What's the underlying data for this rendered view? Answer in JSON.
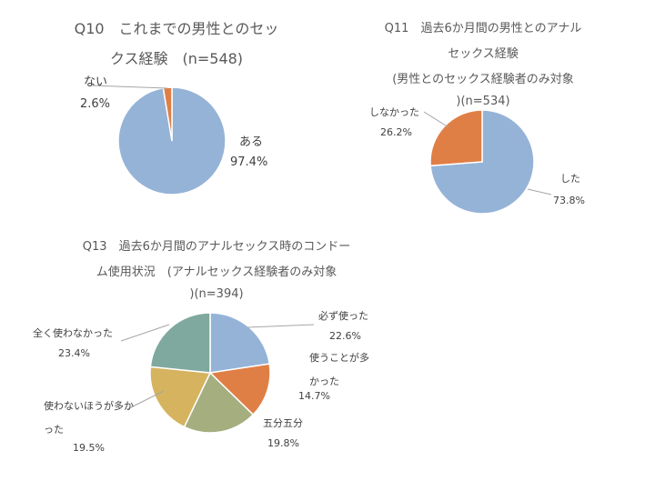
{
  "chart_data": [
    {
      "type": "pie",
      "title_lines": [
        "Q10　これまでの男性とのセッ",
        "クス経験　(n=548)"
      ],
      "categories": [
        "ある",
        "ない"
      ],
      "values": [
        97.4,
        2.6
      ],
      "value_labels": [
        "97.4%",
        "2.6%"
      ],
      "colors": [
        "#95B3D7",
        "#E07F45"
      ]
    },
    {
      "type": "pie",
      "title_lines": [
        "Q11　過去6か月間の男性とのアナル",
        "セックス経験",
        "(男性とのセックス経験者のみ対象",
        ")(n=534)"
      ],
      "categories": [
        "した",
        "しなかった"
      ],
      "values": [
        73.8,
        26.2
      ],
      "value_labels": [
        "73.8%",
        "26.2%"
      ],
      "colors": [
        "#95B3D7",
        "#E07F45"
      ]
    },
    {
      "type": "pie",
      "title_lines": [
        "Q13　過去6か月間のアナルセックス時のコンドー",
        "ム使用状況　(アナルセックス経験者のみ対象",
        ")(n=394)"
      ],
      "categories": [
        "必ず使った",
        "使うことが多かった",
        "五分五分",
        "使わないほうが多かった",
        "全く使わなかった"
      ],
      "values": [
        22.6,
        14.7,
        19.8,
        19.5,
        23.4
      ],
      "value_labels": [
        "22.6%",
        "14.7%",
        "19.8%",
        "19.5%",
        "23.4%"
      ],
      "colors": [
        "#95B3D7",
        "#E07F45",
        "#A5AE7F",
        "#D6B35E",
        "#7FA99E"
      ]
    }
  ]
}
